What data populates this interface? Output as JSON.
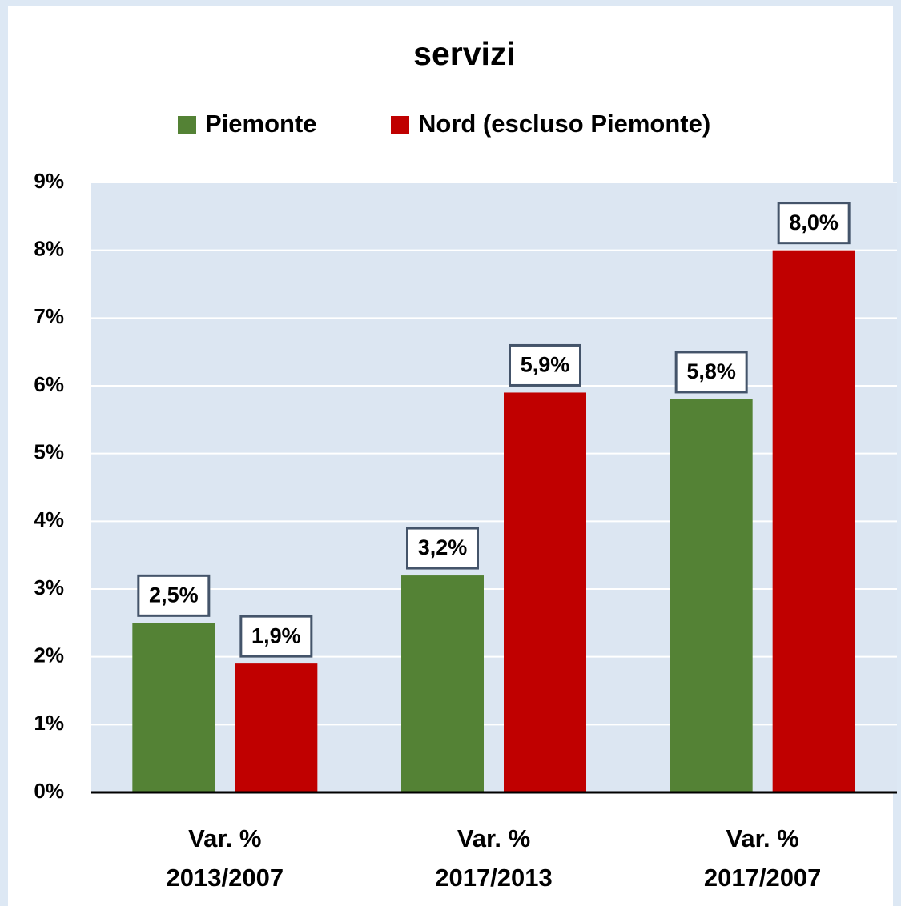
{
  "chart_data": {
    "type": "bar",
    "title": "servizi",
    "categories": [
      "Var. %\n2013/2007",
      "Var. %\n2017/2013",
      "Var. %\n2017/2007"
    ],
    "series": [
      {
        "name": "Piemonte",
        "color": "#548235",
        "values": [
          2.5,
          3.2,
          5.8
        ],
        "value_labels": [
          "2,5%",
          "3,2%",
          "5,8%"
        ]
      },
      {
        "name": "Nord (escluso Piemonte)",
        "color": "#c00000",
        "values": [
          1.9,
          5.9,
          8.0
        ],
        "value_labels": [
          "1,9%",
          "5,9%",
          "8,0%"
        ]
      }
    ],
    "ylim": [
      0,
      9
    ],
    "yticks": [
      {
        "value": 0,
        "label": "0%"
      },
      {
        "value": 1,
        "label": "1%"
      },
      {
        "value": 2,
        "label": "2%"
      },
      {
        "value": 3,
        "label": "3%"
      },
      {
        "value": 4,
        "label": "4%"
      },
      {
        "value": 5,
        "label": "5%"
      },
      {
        "value": 6,
        "label": "6%"
      },
      {
        "value": 7,
        "label": "7%"
      },
      {
        "value": 8,
        "label": "8%"
      },
      {
        "value": 9,
        "label": "9%"
      }
    ],
    "grid": true,
    "legend": "top"
  }
}
